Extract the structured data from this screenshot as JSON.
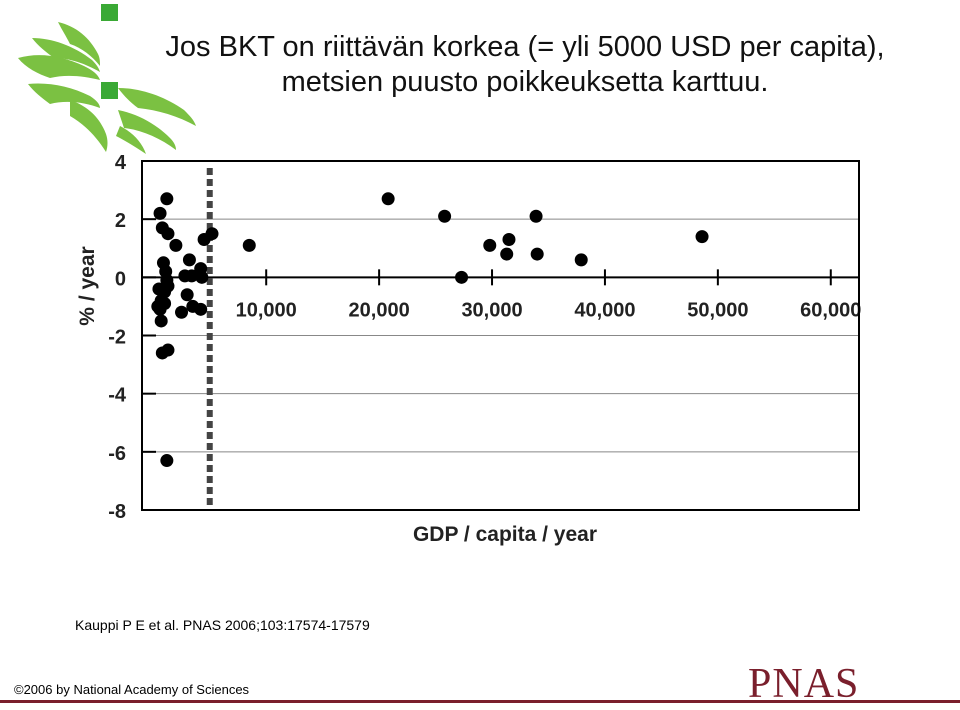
{
  "title": {
    "line1": "Jos BKT on riittävän korkea (= yli 5000 USD per capita),",
    "line2": "metsien puusto poikkeuksetta karttuu."
  },
  "reference": "Kauppi P E et al. PNAS 2006;103:17574-17579",
  "copyright": "©2006 by National Academy of Sciences",
  "publisher_logo_text": "PNAS",
  "colors": {
    "logo_green": "#7bc142",
    "logo_square": "#3aa935",
    "pnas_red": "#7a1f2c",
    "dots": "#000000"
  },
  "chart_data": {
    "type": "scatter",
    "xlabel": "GDP / capita / year",
    "ylabel": "% / year",
    "xlim": [
      -1000,
      62500
    ],
    "ylim": [
      -8,
      4
    ],
    "x_ticks": [
      10000,
      20000,
      30000,
      40000,
      50000,
      60000
    ],
    "x_tick_labels": [
      "10,000",
      "20,000",
      "30,000",
      "40,000",
      "50,000",
      "60,000"
    ],
    "y_ticks": [
      4,
      2,
      0,
      -2,
      -4,
      -6,
      -8
    ],
    "y_tick_labels": [
      "4",
      "2",
      "0",
      "-2",
      "-4",
      "-6",
      "-8"
    ],
    "grid": "horizontal",
    "threshold_x": 5000,
    "points": [
      {
        "x": 600,
        "y": 2.2
      },
      {
        "x": 1200,
        "y": 2.7
      },
      {
        "x": 800,
        "y": 1.7
      },
      {
        "x": 1300,
        "y": 1.5
      },
      {
        "x": 2000,
        "y": 1.1
      },
      {
        "x": 4500,
        "y": 1.3
      },
      {
        "x": 5200,
        "y": 1.5
      },
      {
        "x": 8500,
        "y": 1.1
      },
      {
        "x": 900,
        "y": 0.5
      },
      {
        "x": 1100,
        "y": 0.2
      },
      {
        "x": 1200,
        "y": -0.1
      },
      {
        "x": 1300,
        "y": -0.3
      },
      {
        "x": 500,
        "y": -0.4
      },
      {
        "x": 1000,
        "y": -0.5
      },
      {
        "x": 700,
        "y": -0.8
      },
      {
        "x": 1000,
        "y": -0.9
      },
      {
        "x": 600,
        "y": -1.1
      },
      {
        "x": 400,
        "y": -1.0
      },
      {
        "x": 700,
        "y": -1.5
      },
      {
        "x": 2500,
        "y": -1.2
      },
      {
        "x": 3200,
        "y": 0.6
      },
      {
        "x": 4200,
        "y": 0.3
      },
      {
        "x": 2800,
        "y": 0.05
      },
      {
        "x": 3400,
        "y": 0.05
      },
      {
        "x": 4300,
        "y": 0.0
      },
      {
        "x": 3000,
        "y": -0.6
      },
      {
        "x": 3500,
        "y": -1.0
      },
      {
        "x": 4200,
        "y": -1.1
      },
      {
        "x": 800,
        "y": -2.6
      },
      {
        "x": 1300,
        "y": -2.5
      },
      {
        "x": 1200,
        "y": -6.3
      },
      {
        "x": 20800,
        "y": 2.7
      },
      {
        "x": 25800,
        "y": 2.1
      },
      {
        "x": 27300,
        "y": 0.0
      },
      {
        "x": 29800,
        "y": 1.1
      },
      {
        "x": 31300,
        "y": 0.8
      },
      {
        "x": 31500,
        "y": 1.3
      },
      {
        "x": 33900,
        "y": 2.1
      },
      {
        "x": 34000,
        "y": 0.8
      },
      {
        "x": 37900,
        "y": 0.6
      },
      {
        "x": 48600,
        "y": 1.4
      }
    ]
  }
}
